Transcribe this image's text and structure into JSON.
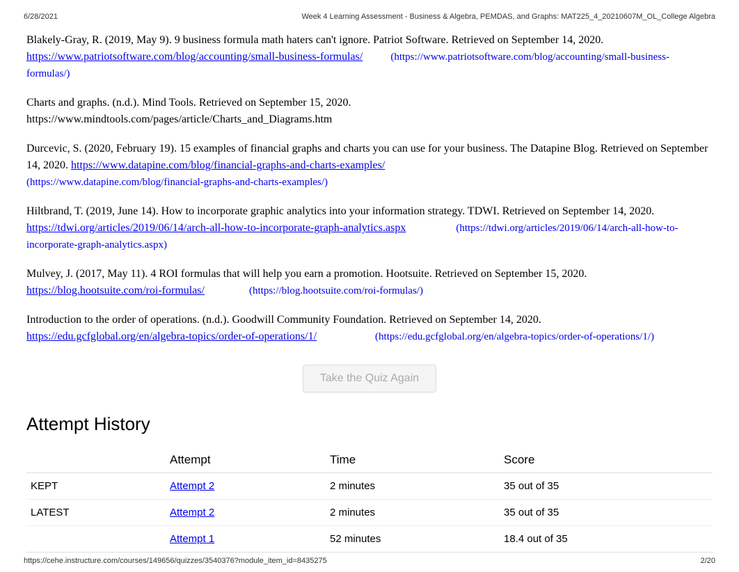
{
  "header": {
    "date": "6/28/2021",
    "title": "Week 4 Learning Assessment - Business & Algebra, PEMDAS, and Graphs: MAT225_4_20210607M_OL_College Algebra"
  },
  "references": [
    {
      "text_before": "Blakely-Gray, R. (2019, May 9).     9 business formula math haters can't ignore.        Patriot Software. Retrieved on September 14, 2020.",
      "url": "https://www.patriotsoftware.com/blog/accounting/small-business-formulas/",
      "paren_url": "(https://www.patriotsoftware.com/blog/accounting/small-business-formulas/)"
    },
    {
      "text_before": "Charts and graphs.     (n.d.). Mind Tools. Retrieved on September 15, 2020.",
      "plain_url": "https://www.mindtools.com/pages/article/Charts_and_Diagrams.htm"
    },
    {
      "text_before": "Durcevic, S. (2020, February 19).      15 examples of financial graphs and charts you can use for your business.               The Datapine Blog. Retrieved on September 14, 2020.      ",
      "url": "https://www.datapine.com/blog/financial-graphs-and-charts-examples/",
      "paren_url": "(https://www.datapine.com/blog/financial-graphs-and-charts-examples/)"
    },
    {
      "text_before": "Hiltbrand, T. (2019, June 14). How to incorporate graphic analytics into your information strategy. TDWI. Retrieved on September 14, 2020.",
      "url": "https://tdwi.org/articles/2019/06/14/arch-all-how-to-incorporate-graph-analytics.aspx",
      "paren_url": "(https://tdwi.org/articles/2019/06/14/arch-all-how-to-incorporate-graph-analytics.aspx)"
    },
    {
      "text_before": "Mulvey, J. (2017, May 11). 4 ROI formulas that will help you earn a promotion. Hootsuite. Retrieved on September 15, 2020.",
      "url": "https://blog.hootsuite.com/roi-formulas/",
      "paren_url": "(https://blog.hootsuite.com/roi-formulas/)"
    },
    {
      "text_before": "Introduction to the order of operations.       (n.d.). Goodwill Community Foundation. Retrieved on September 14, 2020.",
      "url": "https://edu.gcfglobal.org/en/algebra-topics/order-of-operations/1/",
      "paren_url": "(https://edu.gcfglobal.org/en/algebra-topics/order-of-operations/1/)"
    }
  ],
  "quiz_button": "Take the Quiz Again",
  "section_title": "Attempt History",
  "table": {
    "columns": [
      "",
      "Attempt",
      "Time",
      "Score"
    ],
    "rows": [
      {
        "status": "KEPT",
        "attempt": "Attempt 2",
        "time": "2 minutes",
        "score": "35 out of 35"
      },
      {
        "status": "LATEST",
        "attempt": "Attempt 2",
        "time": "2 minutes",
        "score": "35 out of 35"
      },
      {
        "status": "",
        "attempt": "Attempt 1",
        "time": "52 minutes",
        "score": "18.4 out of 35"
      }
    ]
  },
  "footer": {
    "url": "https://cehe.instructure.com/courses/149656/quizzes/3540376?module_item_id=8435275",
    "page": "2/20"
  }
}
